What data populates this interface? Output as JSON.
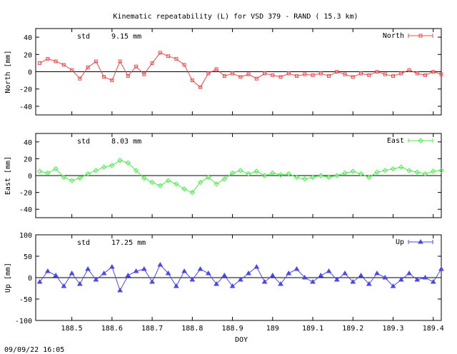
{
  "title": "Kinematic repeatability (L) for VSD 379 - RAND  ( 15.3 km)",
  "timestamp": "09/09/22 16:05",
  "xlabel": "DOY",
  "xticks": [
    "188.5",
    "188.6",
    "188.7",
    "188.8",
    "188.9",
    "189",
    "189.1",
    "189.2",
    "189.3",
    "189.4"
  ],
  "xtick_values": [
    188.5,
    188.6,
    188.7,
    188.8,
    188.9,
    189.0,
    189.1,
    189.2,
    189.3,
    189.4
  ],
  "xlim": [
    188.41,
    189.42
  ],
  "chart_data": [
    {
      "type": "line",
      "name": "North",
      "ylabel": "North [mm]",
      "std_label": "std",
      "std_value": "9.15 mm",
      "color": "#f04848",
      "marker": "square",
      "ylim": [
        -50,
        50
      ],
      "yticks": [
        "40",
        "20",
        "0",
        "-20",
        "-40"
      ],
      "ytick_values": [
        40,
        20,
        0,
        -20,
        -40
      ],
      "x": [
        188.42,
        188.44,
        188.46,
        188.48,
        188.5,
        188.52,
        188.54,
        188.56,
        188.58,
        188.6,
        188.62,
        188.64,
        188.66,
        188.68,
        188.7,
        188.72,
        188.74,
        188.76,
        188.78,
        188.8,
        188.82,
        188.84,
        188.86,
        188.88,
        188.9,
        188.92,
        188.94,
        188.96,
        188.98,
        189.0,
        189.02,
        189.04,
        189.06,
        189.08,
        189.1,
        189.12,
        189.14,
        189.16,
        189.18,
        189.2,
        189.22,
        189.24,
        189.26,
        189.28,
        189.3,
        189.32,
        189.34,
        189.36,
        189.38,
        189.4,
        189.42
      ],
      "y": [
        10,
        15,
        12,
        8,
        2,
        -8,
        5,
        12,
        -6,
        -10,
        12,
        -5,
        6,
        -3,
        10,
        22,
        18,
        15,
        8,
        -10,
        -18,
        -2,
        3,
        -5,
        -2,
        -6,
        -3,
        -8,
        -2,
        -4,
        -6,
        -2,
        -5,
        -3,
        -4,
        -2,
        -5,
        0,
        -3,
        -6,
        -2,
        -4,
        0,
        -3,
        -5,
        -2,
        2,
        -2,
        -4,
        0,
        -3
      ]
    },
    {
      "type": "line",
      "name": "East",
      "ylabel": "East [mm]",
      "std_label": "std",
      "std_value": "8.03 mm",
      "color": "#48ee48",
      "marker": "diamond",
      "ylim": [
        -50,
        50
      ],
      "yticks": [
        "40",
        "20",
        "0",
        "-20",
        "-40"
      ],
      "ytick_values": [
        40,
        20,
        0,
        -20,
        -40
      ],
      "x": [
        188.42,
        188.44,
        188.46,
        188.48,
        188.5,
        188.52,
        188.54,
        188.56,
        188.58,
        188.6,
        188.62,
        188.64,
        188.66,
        188.68,
        188.7,
        188.72,
        188.74,
        188.76,
        188.78,
        188.8,
        188.82,
        188.84,
        188.86,
        188.88,
        188.9,
        188.92,
        188.94,
        188.96,
        188.98,
        189.0,
        189.02,
        189.04,
        189.06,
        189.08,
        189.1,
        189.12,
        189.14,
        189.16,
        189.18,
        189.2,
        189.22,
        189.24,
        189.26,
        189.28,
        189.3,
        189.32,
        189.34,
        189.36,
        189.38,
        189.4,
        189.42
      ],
      "y": [
        5,
        3,
        8,
        -2,
        -6,
        -3,
        2,
        6,
        10,
        12,
        18,
        15,
        6,
        -3,
        -8,
        -12,
        -6,
        -10,
        -16,
        -20,
        -8,
        -2,
        -10,
        -4,
        3,
        6,
        2,
        5,
        0,
        3,
        1,
        2,
        -2,
        -4,
        -2,
        0,
        -2,
        0,
        3,
        5,
        2,
        -2,
        4,
        6,
        8,
        10,
        6,
        4,
        2,
        5,
        6
      ]
    },
    {
      "type": "line",
      "name": "Up",
      "ylabel": "Up [mm]",
      "std_label": "std",
      "std_value": "17.25 mm",
      "color": "#4848ee",
      "marker": "triangle",
      "ylim": [
        -100,
        100
      ],
      "yticks": [
        "100",
        "50",
        "0",
        "-50",
        "-100"
      ],
      "ytick_values": [
        100,
        50,
        0,
        -50,
        -100
      ],
      "x": [
        188.42,
        188.44,
        188.46,
        188.48,
        188.5,
        188.52,
        188.54,
        188.56,
        188.58,
        188.6,
        188.62,
        188.64,
        188.66,
        188.68,
        188.7,
        188.72,
        188.74,
        188.76,
        188.78,
        188.8,
        188.82,
        188.84,
        188.86,
        188.88,
        188.9,
        188.92,
        188.94,
        188.96,
        188.98,
        189.0,
        189.02,
        189.04,
        189.06,
        189.08,
        189.1,
        189.12,
        189.14,
        189.16,
        189.18,
        189.2,
        189.22,
        189.24,
        189.26,
        189.28,
        189.3,
        189.32,
        189.34,
        189.36,
        189.38,
        189.4,
        189.42
      ],
      "y": [
        -10,
        15,
        5,
        -20,
        10,
        -15,
        20,
        -5,
        10,
        25,
        -30,
        5,
        15,
        20,
        -10,
        30,
        10,
        -20,
        15,
        -5,
        20,
        10,
        -15,
        5,
        -20,
        -5,
        10,
        25,
        -10,
        5,
        -15,
        10,
        20,
        0,
        -10,
        5,
        15,
        -5,
        10,
        -10,
        5,
        -15,
        10,
        0,
        -20,
        -5,
        10,
        -5,
        0,
        -10,
        20
      ]
    }
  ]
}
